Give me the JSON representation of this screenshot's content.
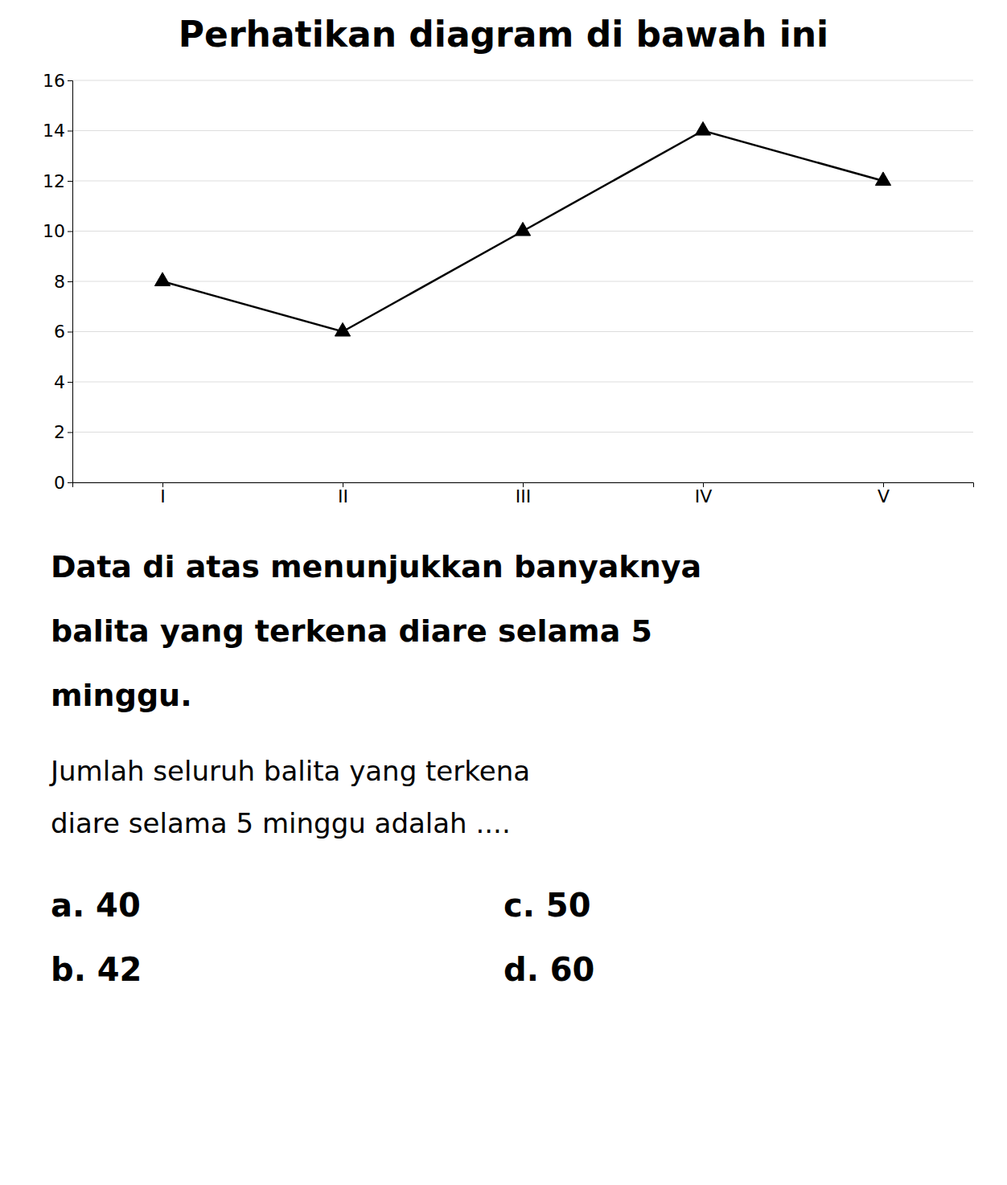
{
  "chart_data": {
    "type": "line",
    "title": "Perhatikan diagram di bawah ini",
    "categories": [
      "I",
      "II",
      "III",
      "IV",
      "V"
    ],
    "values": [
      8,
      6,
      10,
      14,
      12
    ],
    "color": "#000000",
    "marker": "triangle-up",
    "ylim": [
      0,
      16
    ],
    "yticks": [
      0,
      2,
      4,
      6,
      8,
      10,
      12,
      14,
      16
    ],
    "grid": true,
    "annotations": [
      "Data di atas menunjukkan banyaknya",
      "balita yang terkena diare selama 5",
      "minggu.",
      "Jumlah seluruh balita yang terkena",
      "diare selama 5 minggu adalah ....",
      "a.  40",
      "b.  42",
      "c.  50",
      "d.  60"
    ]
  }
}
